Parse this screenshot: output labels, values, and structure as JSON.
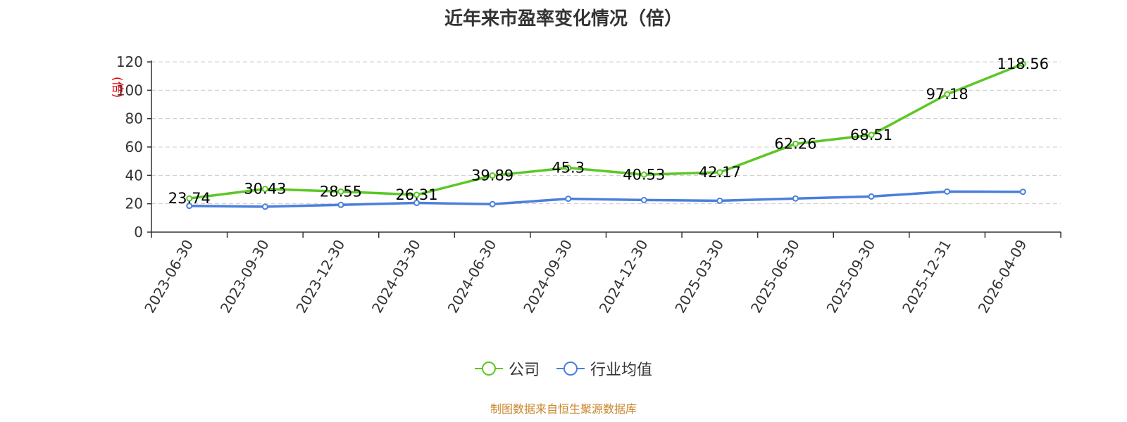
{
  "chart_data": {
    "type": "line",
    "title": "近年来市盈率变化情况（倍）",
    "ylabel": "(倍)",
    "xlabel": "",
    "ylim": [
      0,
      120
    ],
    "yticks": [
      0,
      20,
      40,
      60,
      80,
      100,
      120
    ],
    "grid": true,
    "legend_position": "bottom-center",
    "categories": [
      "2023-06-30",
      "2023-09-30",
      "2023-12-30",
      "2024-03-30",
      "2024-06-30",
      "2024-09-30",
      "2024-12-30",
      "2025-03-30",
      "2025-06-30",
      "2025-09-30",
      "2025-12-31",
      "2026-04-09"
    ],
    "series": [
      {
        "name": "公司",
        "color": "#5cc726",
        "values": [
          23.74,
          30.43,
          28.55,
          26.31,
          39.89,
          45.3,
          40.53,
          42.17,
          62.26,
          68.51,
          97.18,
          118.56
        ],
        "labels": [
          "23.74",
          "30.43",
          "28.55",
          "26.31",
          "39.89",
          "45.3",
          "40.53",
          "42.17",
          "62.26",
          "68.51",
          "97.18",
          "118.56"
        ]
      },
      {
        "name": "行业均值",
        "color": "#4a7fdc",
        "values": [
          18.5,
          17.9,
          19.2,
          20.6,
          19.7,
          23.5,
          22.6,
          22.1,
          23.7,
          25.1,
          28.6,
          28.4
        ]
      }
    ]
  },
  "source_text": "制图数据来自恒生聚源数据库"
}
